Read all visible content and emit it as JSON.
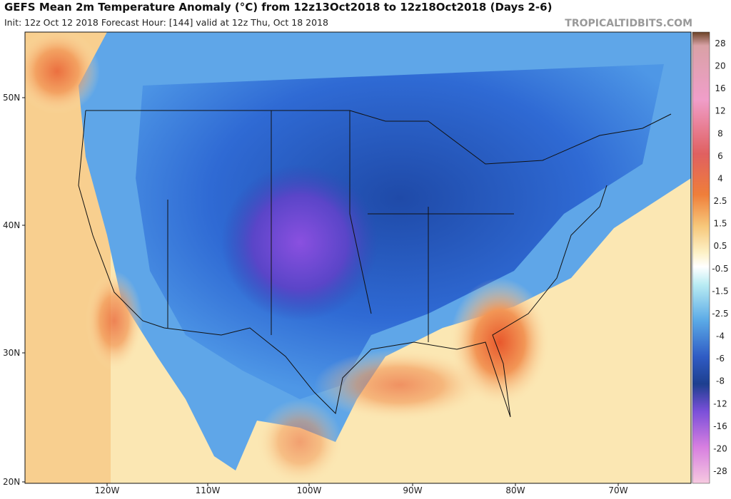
{
  "header": {
    "title": "GEFS Mean 2m Temperature Anomaly (°C) from 12z13Oct2018 to 12z18Oct2018 (Days 2-6)",
    "subtitle": "Init: 12z Oct 12 2018   Forecast Hour: [144]   valid at 12z Thu, Oct 18 2018",
    "watermark": "TROPICALTIDBITS.COM"
  },
  "map": {
    "lat_labels": [
      "50N",
      "40N",
      "30N",
      "20N"
    ],
    "lon_labels": [
      "120W",
      "110W",
      "100W",
      "90W",
      "80W",
      "70W"
    ]
  },
  "colorbar": {
    "labels": [
      "28",
      "20",
      "16",
      "12",
      "8",
      "6",
      "4",
      "2.5",
      "1.5",
      "0.5",
      "-0.5",
      "-1.5",
      "-2.5",
      "-4",
      "-6",
      "-8",
      "-12",
      "-16",
      "-20",
      "-28"
    ]
  }
}
